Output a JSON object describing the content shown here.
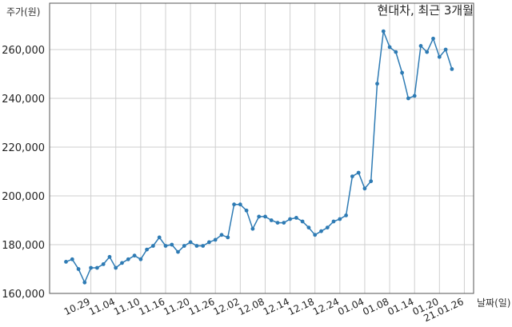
{
  "chart_data": {
    "type": "line",
    "title": "현대차, 최근 3개월",
    "ylabel": "주가(원)",
    "xlabel": "날짜(일)",
    "ylim": [
      160000,
      270000
    ],
    "yticks": [
      "160,000",
      "180,000",
      "200,000",
      "220,000",
      "240,000",
      "260,000"
    ],
    "ytick_values": [
      160000,
      180000,
      200000,
      220000,
      240000,
      260000
    ],
    "xtick_labels": [
      "10.29",
      "11.04",
      "11.10",
      "11.16",
      "11.20",
      "11.26",
      "12.02",
      "12.08",
      "12.14",
      "12.18",
      "12.24",
      "01.04",
      "01.08",
      "01.14",
      "01.20",
      "21.01.26"
    ],
    "xtick_index": [
      4,
      8,
      12,
      16,
      20,
      24,
      28,
      32,
      36,
      40,
      44,
      48,
      52,
      56,
      60,
      64
    ],
    "grid": true,
    "series": [
      {
        "values": [
          173000,
          174000,
          170000,
          164500,
          170500,
          170500,
          172000,
          175000,
          170500,
          172500,
          174000,
          175500,
          174000,
          178000,
          179500,
          183000,
          179500,
          180000,
          177000,
          179500,
          181000,
          179500,
          179500,
          181000,
          182000,
          184000,
          183000,
          196500,
          196500,
          194000,
          186500,
          191500,
          191500,
          190000,
          189000,
          189000,
          190500,
          191000,
          189500,
          187000,
          184000,
          185500,
          187000,
          189500,
          190500,
          192000,
          208000,
          209500,
          203000,
          206000,
          246000,
          267500,
          261000,
          259000,
          250500,
          240000,
          241000,
          261500,
          259000,
          264500,
          257000,
          260000,
          252000
        ],
        "color": "#2e7bb4"
      }
    ]
  }
}
